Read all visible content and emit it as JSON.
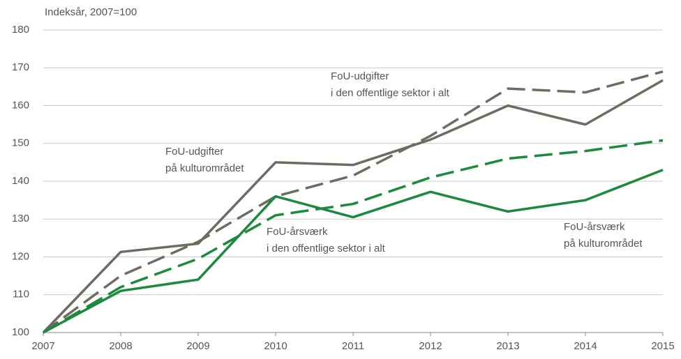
{
  "chart_data": {
    "type": "line",
    "axis_label": "Indeksår, 2007=100",
    "categories": [
      "2007",
      "2008",
      "2009",
      "2010",
      "2011",
      "2012",
      "2013",
      "2014",
      "2015"
    ],
    "series": [
      {
        "color": "#6e6c60",
        "dash": false,
        "values": [
          100,
          121.3,
          123.5,
          145,
          144.3,
          151,
          160,
          155,
          166.7
        ]
      },
      {
        "color": "#6e6c60",
        "dash": true,
        "values": [
          100,
          115,
          124,
          136,
          141.5,
          152,
          164.5,
          163.5,
          169
        ]
      },
      {
        "color": "#1a8a3c",
        "dash": true,
        "values": [
          100,
          112,
          119.5,
          131,
          134,
          141,
          146,
          148,
          150.8
        ]
      },
      {
        "color": "#1a8a3c",
        "dash": false,
        "values": [
          100,
          111,
          114,
          136,
          130.5,
          137.2,
          132,
          135,
          143
        ]
      }
    ],
    "annotations": [
      [
        "FoU-udgifter",
        "i den offentlige sektor i alt"
      ],
      [
        "FoU-udgifter",
        "på kulturområdet"
      ],
      [
        "FoU-årsværk",
        " i den offentlige sektor i alt"
      ],
      [
        "FoU-årsværk",
        "på kulturområdet"
      ]
    ],
    "ylim": [
      100,
      180
    ],
    "yticks": [
      100,
      110,
      120,
      130,
      140,
      150,
      160,
      170,
      180
    ],
    "grid": true
  }
}
